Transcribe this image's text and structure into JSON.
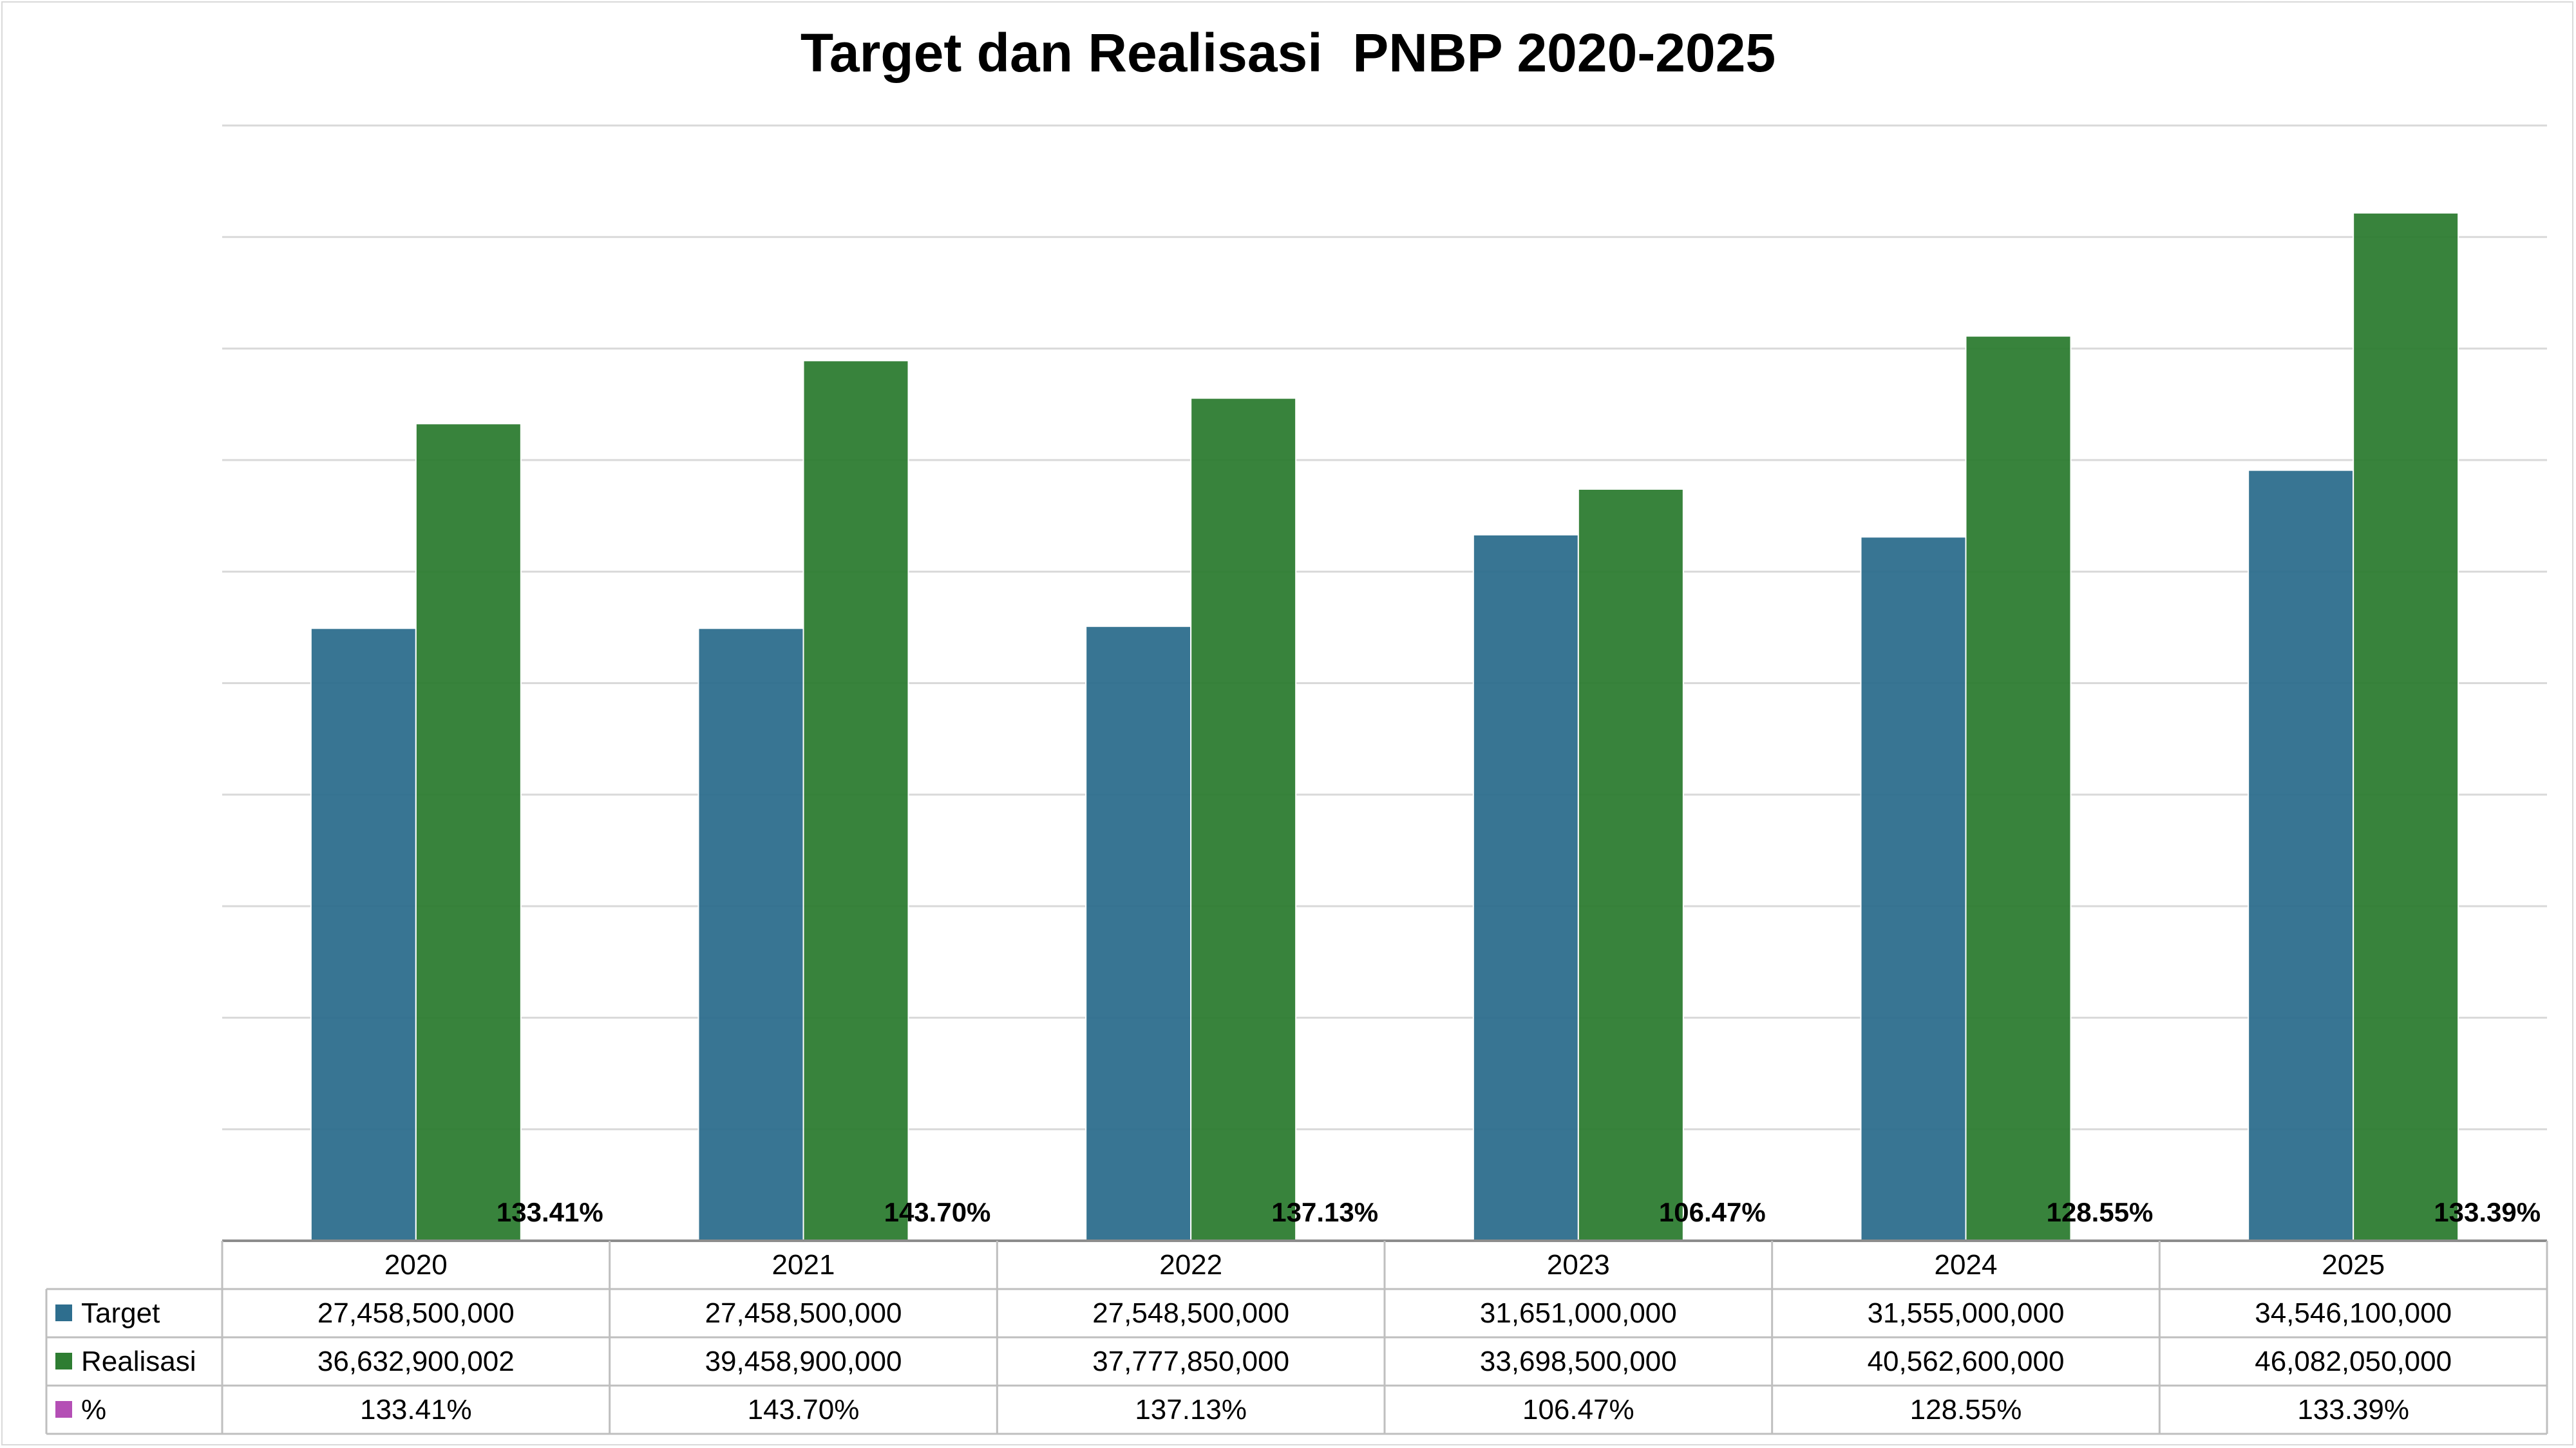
{
  "chart_data": {
    "type": "bar",
    "title": "Target dan Realisasi  PNBP 2020-2025",
    "xlabel": "",
    "ylabel": "",
    "ylim": [
      0,
      50000000000
    ],
    "grid": true,
    "legend": "data-table",
    "categories": [
      "2020",
      "2021",
      "2022",
      "2023",
      "2024",
      "2025"
    ],
    "series": [
      {
        "name": "Target",
        "color": "#2e6e8e",
        "values": [
          27458500000,
          27458500000,
          27548500000,
          31651000000,
          31555000000,
          34546100000
        ],
        "labels": [
          "27,458,500,000",
          "27,458,500,000",
          "27,548,500,000",
          "31,651,000,000",
          "31,555,000,000",
          "34,546,100,000"
        ]
      },
      {
        "name": "Realisasi",
        "color": "#2e7d32",
        "values": [
          36632900002,
          39458900000,
          37777850000,
          33698500000,
          40562600000,
          46082050000
        ],
        "labels": [
          "36,632,900,002",
          "39,458,900,000",
          "37,777,850,000",
          "33,698,500,000",
          "40,562,600,000",
          "46,082,050,000"
        ]
      },
      {
        "name": "%",
        "color": "#b44fb5",
        "values": [
          133.41,
          143.7,
          137.13,
          106.47,
          128.55,
          133.39
        ],
        "labels": [
          "133.41%",
          "143.70%",
          "137.13%",
          "106.47%",
          "128.55%",
          "133.39%"
        ]
      }
    ]
  }
}
